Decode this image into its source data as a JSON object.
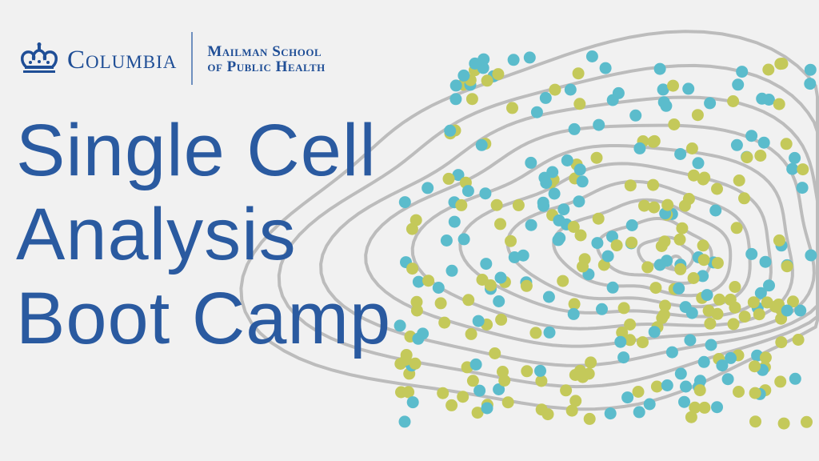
{
  "logo": {
    "university": "Columbia",
    "school_line1": "Mailman School",
    "school_line2": "of Public Health"
  },
  "title": {
    "line1": "Single Cell",
    "line2": "Analysis",
    "line3": "Boot Camp"
  },
  "colors": {
    "background": "#f1f1f1",
    "brand_blue": "#1f4e96",
    "dot_teal": "#5bbccc",
    "dot_green": "#c4c95a",
    "contour_gray": "#bcbcbc"
  }
}
